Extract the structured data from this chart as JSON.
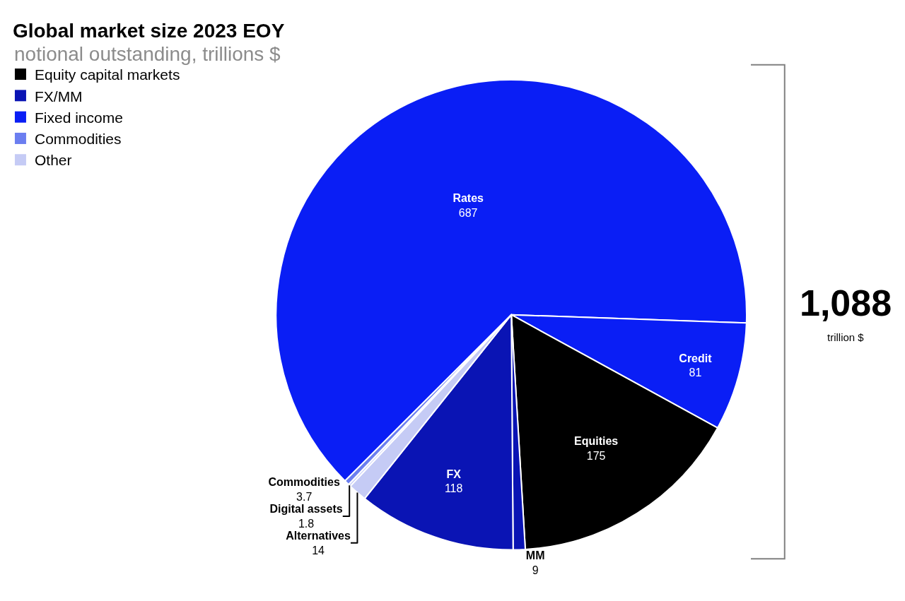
{
  "chart_data": [
    {
      "type": "pie",
      "title": "Global market size 2023 EOY",
      "subtitle": "notional outstanding, trillions $",
      "categories": [
        "Rates",
        "Credit",
        "Equities",
        "MM",
        "FX",
        "Alternatives",
        "Digital assets",
        "Commodities"
      ],
      "values": [
        687,
        81,
        175,
        9,
        118,
        14,
        1.8,
        3.7
      ],
      "colors": [
        "#0a1ef5",
        "#0a1ef5",
        "#000000",
        "#0a14b4",
        "#0a14b4",
        "#c5cbf5",
        "#c5cbf5",
        "#6b7ef0"
      ],
      "data_labels": true,
      "annotations": [
        "1,088",
        "trillion $"
      ]
    },
    {
      "type": "other",
      "categories": [
        "Equity capital markets",
        "FX/MM",
        "Fixed income",
        "Commodities",
        "Other"
      ],
      "colors": [
        "#000000",
        "#0a14b4",
        "#0a1ef5",
        "#6b7ef0",
        "#c5cbf5"
      ]
    }
  ]
}
